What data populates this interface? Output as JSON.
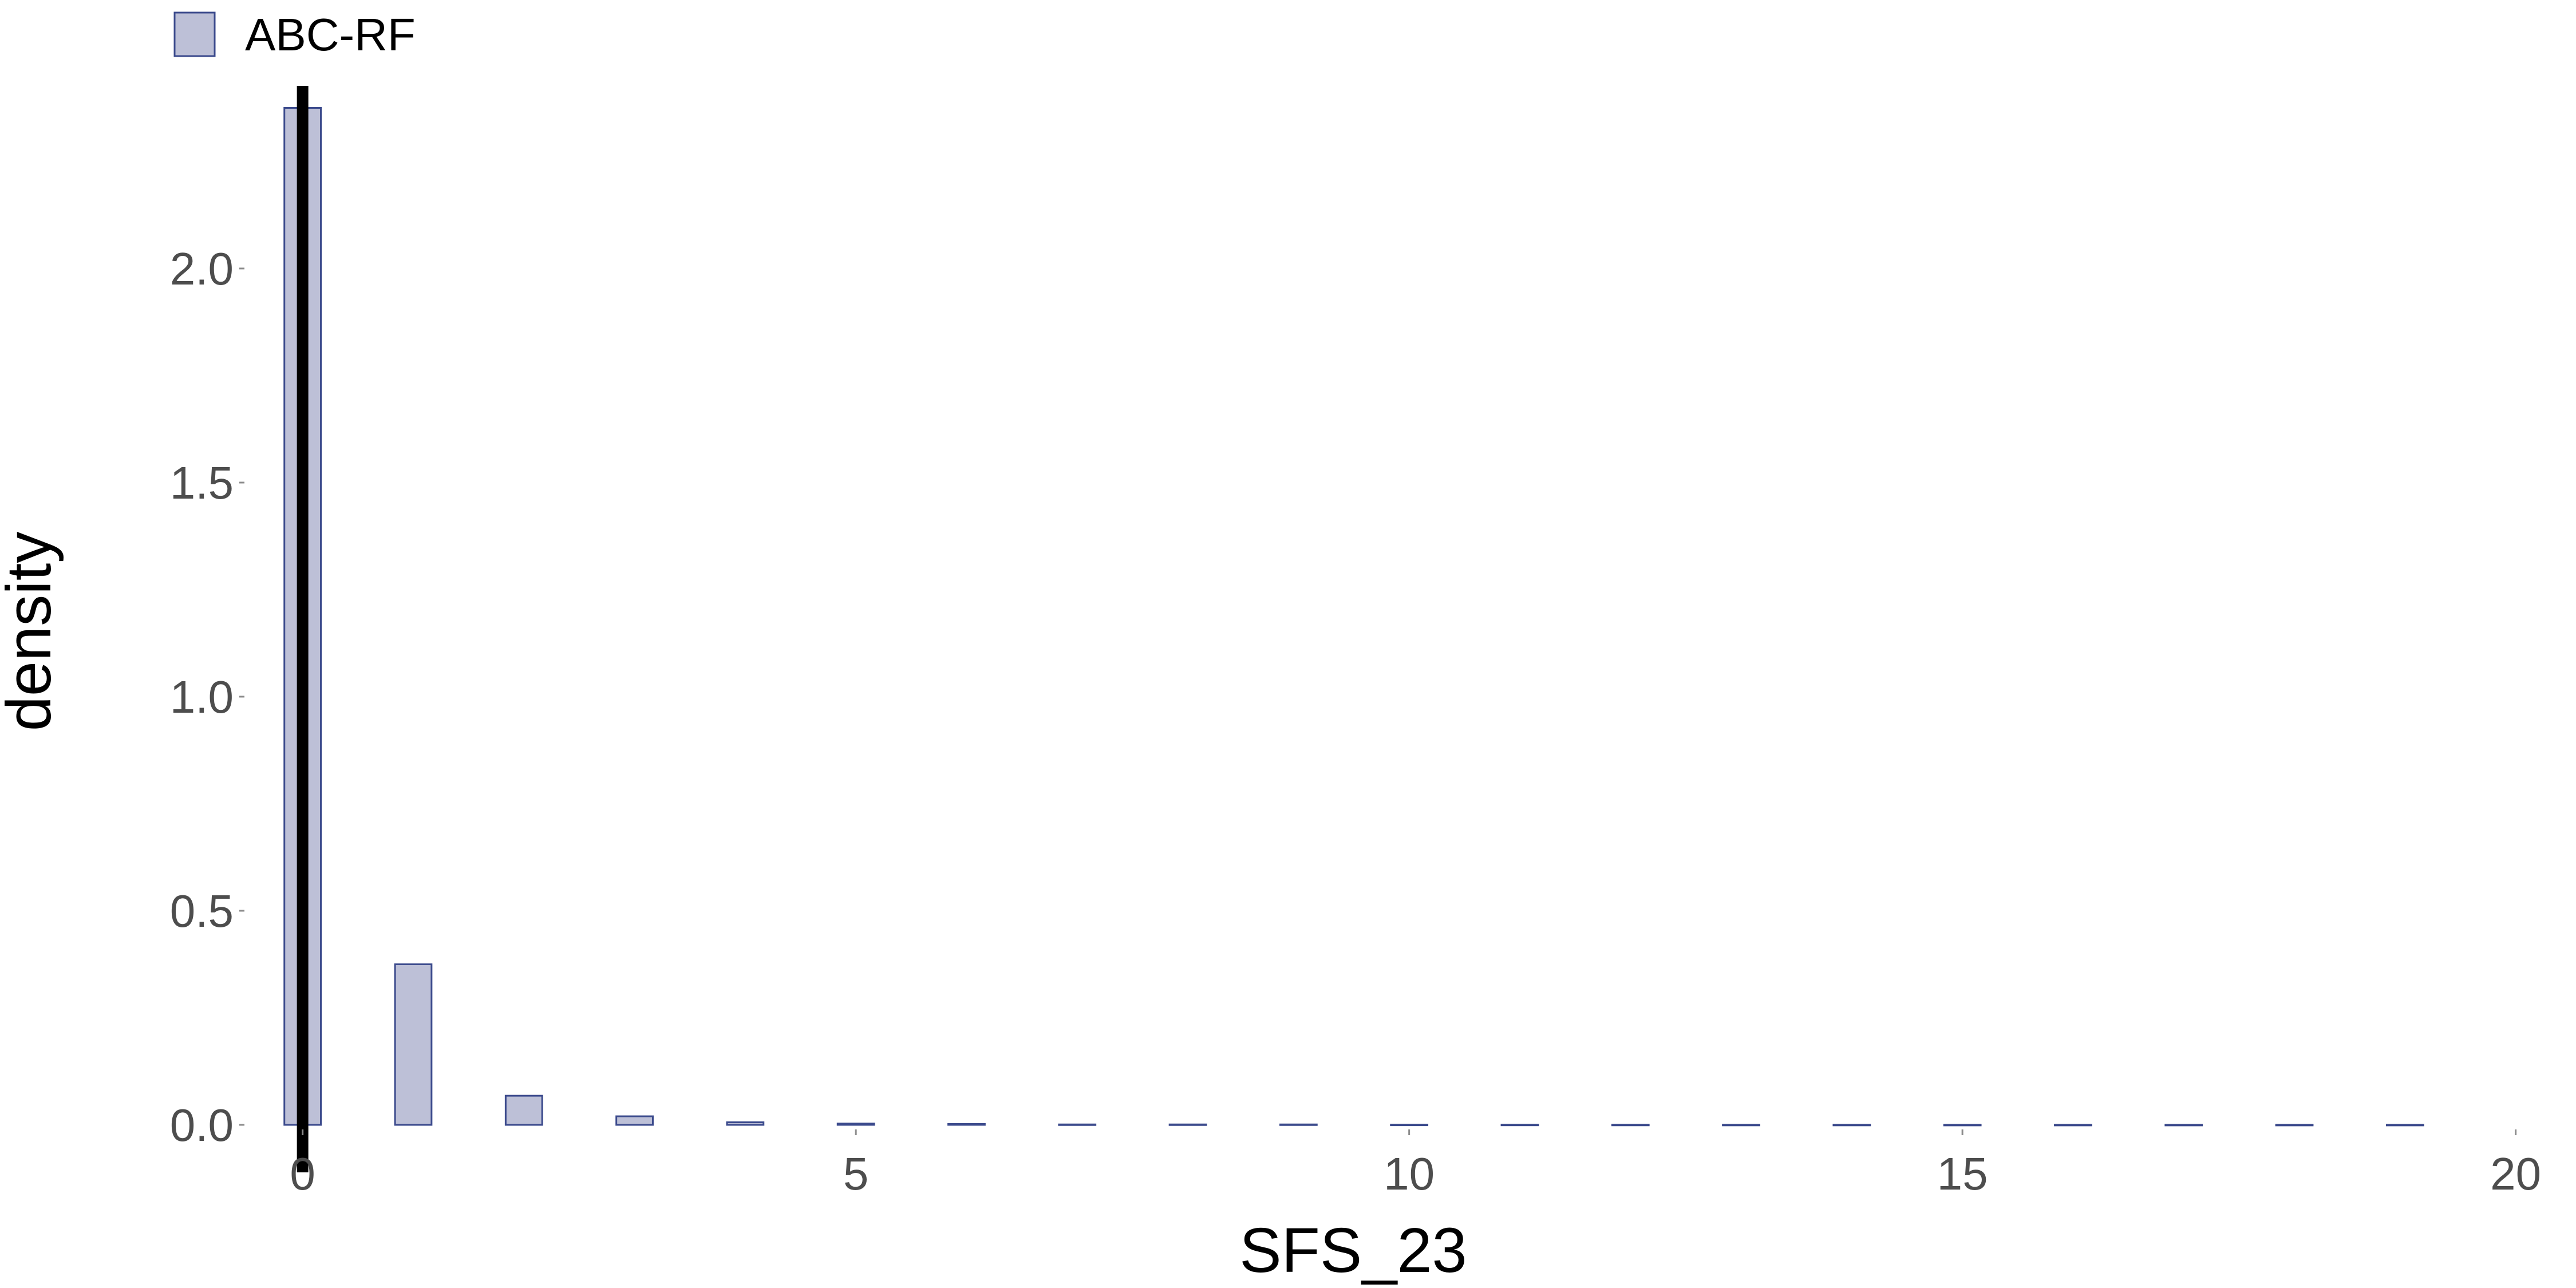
{
  "chart_data": {
    "type": "bar",
    "title": "",
    "xlabel": "SFS_23",
    "ylabel": "density",
    "xlim": [
      -0.5,
      19.5
    ],
    "ylim": [
      0,
      2.5
    ],
    "x_ticks": [
      0,
      5,
      10,
      15,
      20
    ],
    "x_tick_labels": [
      "0",
      "5",
      "10",
      "15",
      "20"
    ],
    "y_ticks": [
      0,
      0.5,
      1,
      1.5,
      2
    ],
    "y_tick_labels": [
      "0.0",
      "0.5",
      "1.0",
      "1.5",
      "2.0"
    ],
    "grid": false,
    "legend": {
      "position": "top-left",
      "entries": [
        "ABC-RF"
      ]
    },
    "series": [
      {
        "name": "ABC-RF",
        "color": "#BDC0D7",
        "stroke": "#3B4A8C",
        "x": [
          0,
          1,
          2,
          3,
          4,
          5,
          6,
          7,
          8,
          9,
          10,
          11,
          12,
          13,
          14,
          15,
          16,
          17,
          18,
          19
        ],
        "values": [
          2.375,
          0.375,
          0.068,
          0.02,
          0.006,
          0.003,
          0.002,
          0.001,
          0.001,
          0.001,
          0.0005,
          0.0004,
          0.0003,
          0.0002,
          0.0002,
          0.0001,
          0.0001,
          0.0001,
          0.0001,
          0.0001
        ],
        "bar_width": 0.33
      }
    ],
    "reference_line": {
      "x": 0,
      "color": "#000000"
    }
  }
}
